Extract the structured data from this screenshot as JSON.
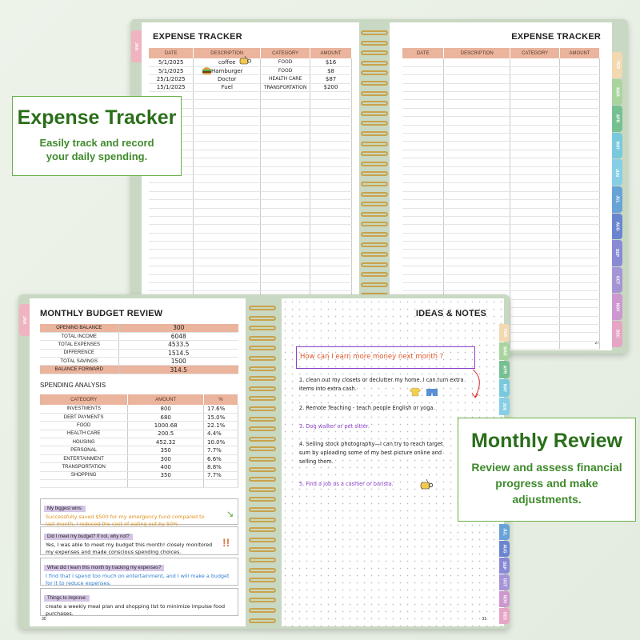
{
  "back_planner": {
    "left_title": "EXPENSE TRACKER",
    "right_title": "EXPENSE TRACKER",
    "headers": [
      "DATE",
      "DESCRIPTION",
      "CATEGORY",
      "AMOUNT"
    ],
    "rows": [
      [
        "5/1/2025",
        "coffee",
        "FOOD",
        "$16"
      ],
      [
        "5/1/2025",
        "Hamburger",
        "FOOD",
        "$8"
      ],
      [
        "25/1/2025",
        "Doctor",
        "HEALTH CARE",
        "$87"
      ],
      [
        "15/1/2025",
        "Fuel",
        "TRANSPORTATION",
        "$200"
      ]
    ],
    "left_tab": "JAN",
    "page_number": "27",
    "tabs": [
      {
        "label": "FEB",
        "color": "#f3d9b1"
      },
      {
        "label": "MAR",
        "color": "#a9d49f"
      },
      {
        "label": "APR",
        "color": "#76c092"
      },
      {
        "label": "MAY",
        "color": "#79c9dd"
      },
      {
        "label": "JUN",
        "color": "#86cfe6"
      },
      {
        "label": "JUL",
        "color": "#68a3d8"
      },
      {
        "label": "AUG",
        "color": "#6a85cf"
      },
      {
        "label": "SEP",
        "color": "#8989d6"
      },
      {
        "label": "OCT",
        "color": "#a695d6"
      },
      {
        "label": "NOV",
        "color": "#cc98cf"
      },
      {
        "label": "DEC",
        "color": "#e6a5c4"
      }
    ]
  },
  "front_planner": {
    "left_title": "MONTHLY BUDGET REVIEW",
    "left_tab": "JAN",
    "budget": [
      [
        "OPENING BALANCE",
        "300"
      ],
      [
        "TOTAL INCOME",
        "6048"
      ],
      [
        "TOTAL EXPENSES",
        "4533.5"
      ],
      [
        "DIFFERENCE",
        "1514.5"
      ],
      [
        "TOTAL SAVINGS",
        "1500"
      ],
      [
        "BALANCE FORWARD",
        "314.5"
      ]
    ],
    "spending_title": "SPENDING ANALYSIS",
    "spending_headers": [
      "CATEGORY",
      "AMOUNT",
      "%"
    ],
    "spending": [
      [
        "INVESTMENTS",
        "800",
        "17.6%"
      ],
      [
        "DEBT PAYMENTS",
        "680",
        "15.0%"
      ],
      [
        "FOOD",
        "1000.68",
        "22.1%"
      ],
      [
        "HEALTH CARE",
        "200.5",
        "4.4%"
      ],
      [
        "HOUSING",
        "452.32",
        "10.0%"
      ],
      [
        "PERSONAL",
        "350",
        "7.7%"
      ],
      [
        "ENTERTAINMENT",
        "300",
        "6.6%"
      ],
      [
        "TRANSPORTATION",
        "400",
        "8.8%"
      ],
      [
        "SHOPPING",
        "350",
        "7.7%"
      ]
    ],
    "reflections": [
      {
        "label": "My biggest wins:",
        "text": "Successfully saved $500 for my emergency fund compared to last month, I reduced the cost of eating out by 50%.",
        "color": "#e0901c"
      },
      {
        "label": "Did I meet my budget? If not, why not?",
        "text": "Yes, I was able to meet my budget this month! closely monitored my expenses and made conscious spending choices.",
        "color": "#222222"
      },
      {
        "label": "What did I learn this month by tracking my expenses?",
        "text": "I find that I spend too much on entertainment, and I will make a budget for it to reduce expenses.",
        "color": "#2f7fd0"
      },
      {
        "label": "Things to improve:",
        "text": "create a weekly meal plan and shopping list to minimize impulse food purchases.",
        "color": "#222222"
      }
    ],
    "left_page_number": "30",
    "right_title": "IDEAS & NOTES",
    "question": "How can I earn more money next month ?",
    "notes": [
      {
        "text": "1. clean out my closets or declutter my home. I can turn extra items into extra cash.",
        "color": "#222222"
      },
      {
        "text": "2. Remote Teaching - teach people English or yoga.",
        "color": "#222222"
      },
      {
        "text": "3. Dog walker or pet sitter.",
        "color": "#8a3fc8"
      },
      {
        "text": "4. Selling stock photography—I can try to reach target sum by uploading some of my best picture online and selling them.",
        "color": "#222222"
      },
      {
        "text": "5. Find a job as a cashier or barista.",
        "color": "#8a3fc8"
      }
    ],
    "right_page_number": "31",
    "tabs": [
      {
        "label": "FEB",
        "color": "#f3d9b1"
      },
      {
        "label": "MAR",
        "color": "#a9d49f"
      },
      {
        "label": "APR",
        "color": "#76c092"
      },
      {
        "label": "MAY",
        "color": "#79c9dd"
      },
      {
        "label": "JUN",
        "color": "#86cfe6"
      },
      {
        "label": "JUL",
        "color": "#68a3d8"
      },
      {
        "label": "AUG",
        "color": "#6a85cf"
      },
      {
        "label": "SEP",
        "color": "#8989d6"
      },
      {
        "label": "OCT",
        "color": "#a695d6"
      },
      {
        "label": "NOV",
        "color": "#cc98cf"
      },
      {
        "label": "DEC",
        "color": "#e6a5c4"
      }
    ]
  },
  "callouts": {
    "expense": {
      "title": "Expense Tracker",
      "subtitle": "Easily track and record your daily spending."
    },
    "review": {
      "title": "Monthly Review",
      "subtitle": "Review and assess financial progress and make adjustments."
    }
  },
  "colors": {
    "header": "#eab49d",
    "accent_green": "#2e7d1e",
    "spiral": "#c9a24a"
  }
}
